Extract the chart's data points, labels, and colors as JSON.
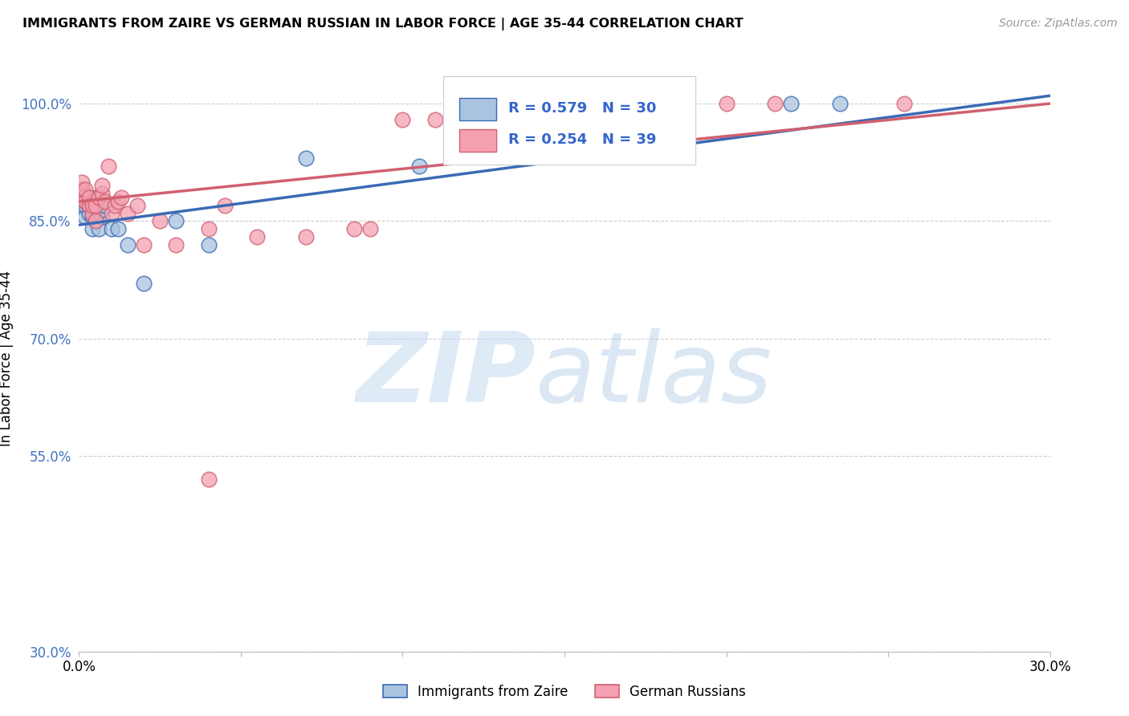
{
  "title": "IMMIGRANTS FROM ZAIRE VS GERMAN RUSSIAN IN LABOR FORCE | AGE 35-44 CORRELATION CHART",
  "source": "Source: ZipAtlas.com",
  "ylabel": "In Labor Force | Age 35-44",
  "xlim": [
    0.0,
    0.3
  ],
  "ylim": [
    0.3,
    1.05
  ],
  "yticks": [
    1.0,
    0.85,
    0.7,
    0.55,
    0.3
  ],
  "ytick_labels": [
    "100.0%",
    "85.0%",
    "70.0%",
    "55.0%",
    "30.0%"
  ],
  "xticks": [
    0.0,
    0.05,
    0.1,
    0.15,
    0.2,
    0.25,
    0.3
  ],
  "xtick_labels": [
    "0.0%",
    "",
    "",
    "",
    "",
    "",
    "30.0%"
  ],
  "blue_color": "#a8c4e0",
  "pink_color": "#f4a0b0",
  "blue_line_color": "#3a6ab5",
  "pink_line_color": "#d06070",
  "legend_label_blue": "Immigrants from Zaire",
  "legend_label_pink": "German Russians",
  "blue_line_x0": 0.0,
  "blue_line_y0": 0.845,
  "blue_line_x1": 0.3,
  "blue_line_y1": 1.01,
  "pink_line_x0": 0.0,
  "pink_line_y0": 0.875,
  "pink_line_x1": 0.3,
  "pink_line_y1": 1.0,
  "blue_scatter_x": [
    0.001,
    0.001,
    0.001,
    0.002,
    0.002,
    0.002,
    0.002,
    0.003,
    0.003,
    0.003,
    0.004,
    0.004,
    0.005,
    0.005,
    0.005,
    0.006,
    0.006,
    0.007,
    0.007,
    0.008,
    0.01,
    0.012,
    0.015,
    0.02,
    0.03,
    0.04,
    0.07,
    0.105,
    0.22,
    0.235
  ],
  "blue_scatter_y": [
    0.87,
    0.88,
    0.89,
    0.855,
    0.87,
    0.875,
    0.88,
    0.86,
    0.87,
    0.875,
    0.84,
    0.855,
    0.85,
    0.87,
    0.88,
    0.84,
    0.86,
    0.855,
    0.865,
    0.87,
    0.84,
    0.84,
    0.82,
    0.77,
    0.85,
    0.82,
    0.93,
    0.92,
    1.0,
    1.0
  ],
  "pink_scatter_x": [
    0.001,
    0.001,
    0.001,
    0.002,
    0.002,
    0.003,
    0.003,
    0.004,
    0.004,
    0.005,
    0.005,
    0.006,
    0.007,
    0.007,
    0.008,
    0.009,
    0.01,
    0.011,
    0.012,
    0.013,
    0.015,
    0.018,
    0.02,
    0.025,
    0.03,
    0.04,
    0.045,
    0.055,
    0.07,
    0.085,
    0.09,
    0.1,
    0.11,
    0.14,
    0.155,
    0.2,
    0.215,
    0.255,
    0.04
  ],
  "pink_scatter_y": [
    0.88,
    0.89,
    0.9,
    0.875,
    0.89,
    0.87,
    0.88,
    0.86,
    0.87,
    0.85,
    0.87,
    0.88,
    0.885,
    0.895,
    0.875,
    0.92,
    0.86,
    0.87,
    0.875,
    0.88,
    0.86,
    0.87,
    0.82,
    0.85,
    0.82,
    0.84,
    0.87,
    0.83,
    0.83,
    0.84,
    0.84,
    0.98,
    0.98,
    0.99,
    0.99,
    1.0,
    1.0,
    1.0,
    0.52
  ]
}
